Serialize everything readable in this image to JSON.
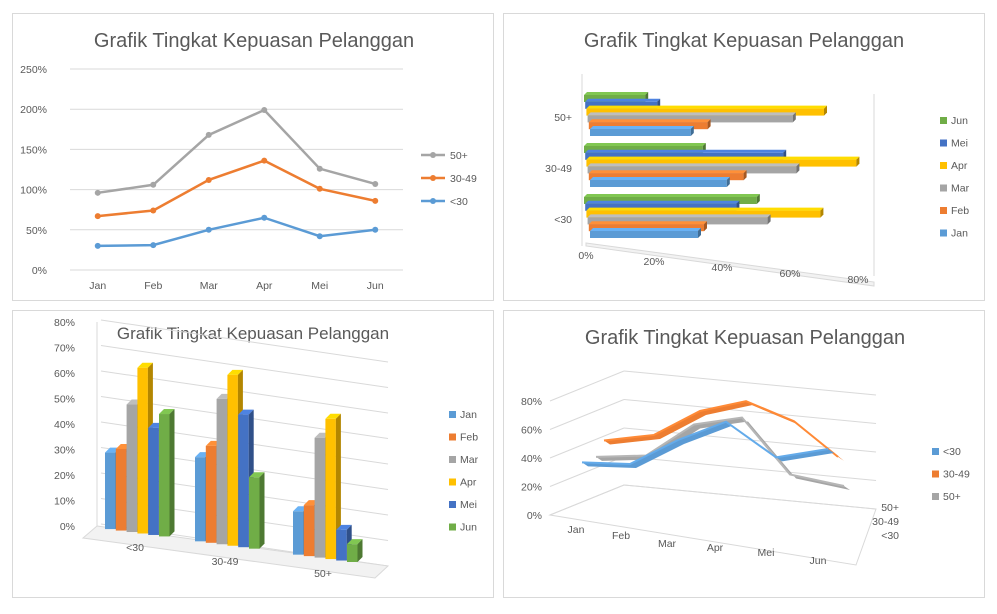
{
  "colors": {
    "jan": "#5b9bd5",
    "feb": "#ed7d31",
    "mar": "#a5a5a5",
    "apr": "#ffc000",
    "mei": "#4472c4",
    "jun": "#70ad47",
    "lt30": "#5b9bd5",
    "g3049": "#ed7d31",
    "g50": "#a5a5a5"
  },
  "chart_data": [
    {
      "type": "line",
      "title": "Grafik Tingkat Kepuasan Pelanggan",
      "categories": [
        "Jan",
        "Feb",
        "Mar",
        "Apr",
        "Mei",
        "Jun"
      ],
      "yticks": [
        "0%",
        "50%",
        "100%",
        "150%",
        "200%",
        "250%"
      ],
      "ylim": [
        0,
        250
      ],
      "stacked": true,
      "legend_position": "right",
      "series": [
        {
          "name": "<30",
          "values": [
            30,
            31,
            50,
            65,
            42,
            50
          ],
          "color_key": "lt30"
        },
        {
          "name": "30-49",
          "values": [
            67,
            74,
            112,
            136,
            101,
            86
          ],
          "color_key": "g3049"
        },
        {
          "name": "50+",
          "values": [
            96,
            106,
            168,
            199,
            126,
            107
          ],
          "color_key": "g50"
        }
      ]
    },
    {
      "type": "bar",
      "orientation": "horizontal",
      "title": "Grafik Tingkat Kepuasan Pelanggan",
      "categories": [
        "<30",
        "30-49",
        "50+"
      ],
      "xticks": [
        "0%",
        "20%",
        "40%",
        "60%",
        "80%"
      ],
      "xlim": [
        0,
        80
      ],
      "legend_position": "right",
      "series": [
        {
          "name": "Jan",
          "values": [
            30,
            38,
            28
          ],
          "color_key": "jan"
        },
        {
          "name": "Feb",
          "values": [
            32,
            43,
            33
          ],
          "color_key": "feb"
        },
        {
          "name": "Mar",
          "values": [
            50,
            58,
            57
          ],
          "color_key": "mar"
        },
        {
          "name": "Apr",
          "values": [
            65,
            75,
            66
          ],
          "color_key": "apr"
        },
        {
          "name": "Mei",
          "values": [
            42,
            55,
            20
          ],
          "color_key": "mei"
        },
        {
          "name": "Jun",
          "values": [
            48,
            33,
            17
          ],
          "color_key": "jun"
        }
      ]
    },
    {
      "type": "bar",
      "title": "Grafik Tingkat Kepuasan Pelanggan",
      "categories": [
        "<30",
        "30-49",
        "50+"
      ],
      "yticks": [
        "0%",
        "10%",
        "20%",
        "30%",
        "40%",
        "50%",
        "60%",
        "70%",
        "80%"
      ],
      "ylim": [
        0,
        80
      ],
      "legend_position": "right",
      "series": [
        {
          "name": "Jan",
          "values": [
            30,
            33,
            17
          ],
          "color_key": "jan"
        },
        {
          "name": "Feb",
          "values": [
            32,
            38,
            20
          ],
          "color_key": "feb"
        },
        {
          "name": "Mar",
          "values": [
            50,
            57,
            47
          ],
          "color_key": "mar"
        },
        {
          "name": "Apr",
          "values": [
            65,
            67,
            55
          ],
          "color_key": "apr"
        },
        {
          "name": "Mei",
          "values": [
            42,
            52,
            12
          ],
          "color_key": "mei"
        },
        {
          "name": "Jun",
          "values": [
            48,
            28,
            7
          ],
          "color_key": "jun"
        }
      ]
    },
    {
      "type": "line",
      "subtype": "3d",
      "title": "Grafik Tingkat Kepuasan Pelanggan",
      "categories": [
        "Jan",
        "Feb",
        "Mar",
        "Apr",
        "Mei",
        "Jun"
      ],
      "yticks": [
        "0%",
        "20%",
        "40%",
        "60%",
        "80%"
      ],
      "ylim": [
        0,
        80
      ],
      "depth_labels": [
        "50+",
        "30-49",
        "<30"
      ],
      "legend_position": "right",
      "series": [
        {
          "name": "<30",
          "values": [
            30,
            31,
            50,
            65,
            42,
            50
          ],
          "color_key": "lt30"
        },
        {
          "name": "30-49",
          "values": [
            37,
            43,
            62,
            71,
            59,
            36
          ],
          "color_key": "g3049"
        },
        {
          "name": "50+",
          "values": [
            29,
            32,
            56,
            63,
            25,
            19
          ],
          "color_key": "g50"
        }
      ]
    }
  ]
}
